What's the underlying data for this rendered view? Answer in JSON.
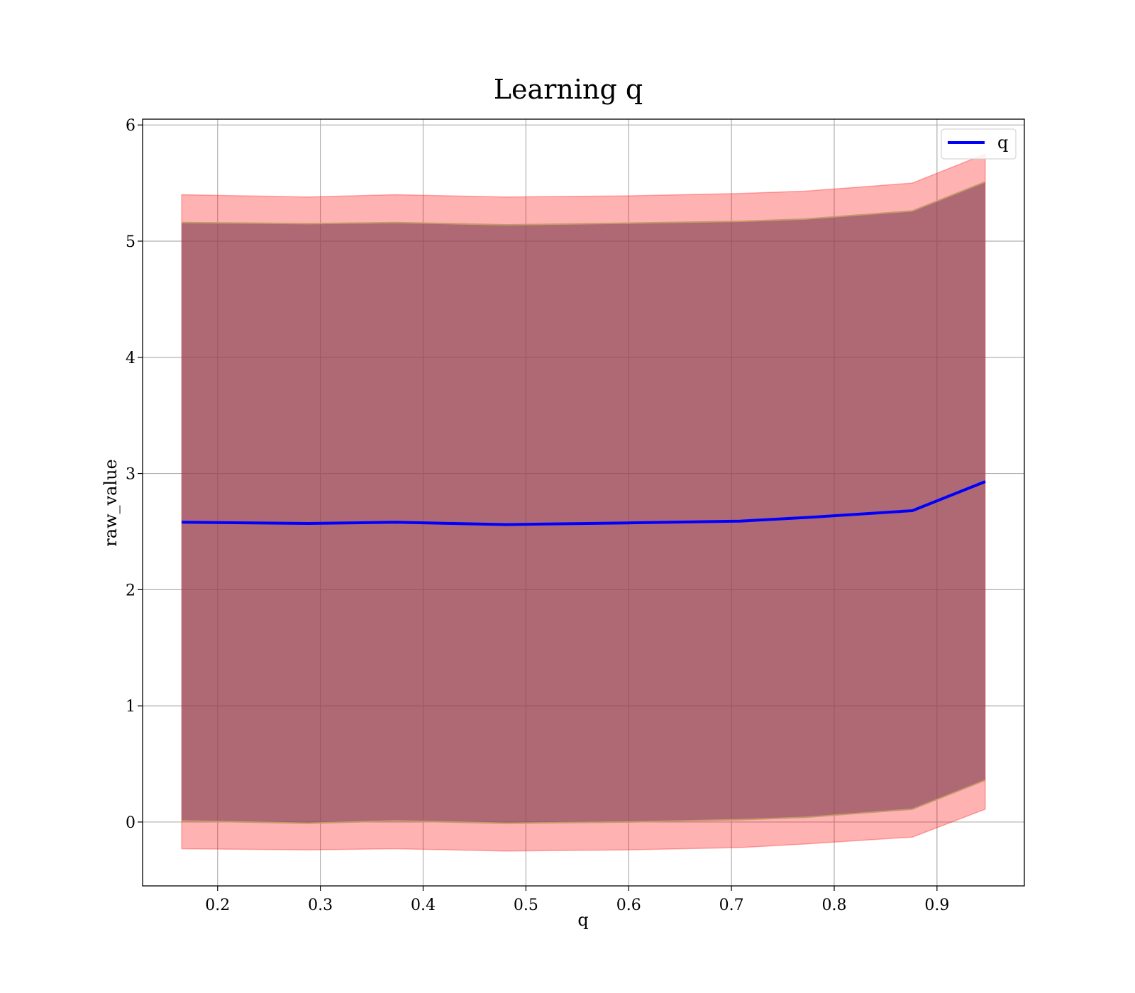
{
  "chart_data": {
    "type": "line",
    "title": "Learning q",
    "xlabel": "q",
    "ylabel": "raw_value",
    "xlim": [
      0.127,
      0.985
    ],
    "ylim": [
      -0.55,
      6.05
    ],
    "xticks": [
      0.2,
      0.3,
      0.4,
      0.5,
      0.6,
      0.7,
      0.8,
      0.9
    ],
    "xtick_labels": [
      "0.2",
      "0.3",
      "0.4",
      "0.5",
      "0.6",
      "0.7",
      "0.8",
      "0.9"
    ],
    "yticks": [
      0,
      1,
      2,
      3,
      4,
      5,
      6
    ],
    "ytick_labels": [
      "0",
      "1",
      "2",
      "3",
      "4",
      "5",
      "6"
    ],
    "grid": true,
    "legend_position": "top-right",
    "colors": {
      "line": "#0000ff",
      "outer_band": "#ff0000",
      "inner_band": "#8b4a5a",
      "inner_edge": "#c49a6a"
    },
    "x": [
      0.165,
      0.288,
      0.373,
      0.481,
      0.6,
      0.708,
      0.771,
      0.876,
      0.947
    ],
    "series": [
      {
        "name": "q",
        "values": [
          2.58,
          2.57,
          2.58,
          2.56,
          2.575,
          2.59,
          2.62,
          2.68,
          2.93
        ]
      }
    ],
    "bands": [
      {
        "kind": "outer",
        "upper": [
          5.4,
          5.38,
          5.4,
          5.38,
          5.39,
          5.41,
          5.43,
          5.5,
          5.75
        ],
        "lower": [
          -0.23,
          -0.24,
          -0.23,
          -0.25,
          -0.24,
          -0.22,
          -0.19,
          -0.13,
          0.11
        ]
      },
      {
        "kind": "inner",
        "upper": [
          5.16,
          5.15,
          5.16,
          5.14,
          5.155,
          5.17,
          5.19,
          5.26,
          5.51
        ],
        "lower": [
          0.01,
          -0.01,
          0.01,
          -0.01,
          0.0,
          0.02,
          0.04,
          0.11,
          0.36
        ]
      }
    ]
  }
}
